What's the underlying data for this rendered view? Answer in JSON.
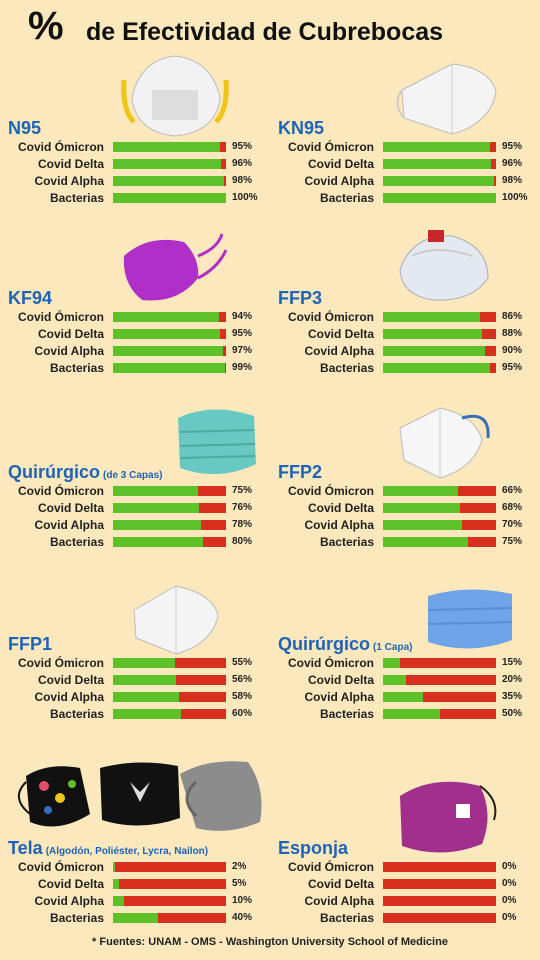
{
  "title": {
    "symbol": "%",
    "text": "de Efectividad de Cubrebocas"
  },
  "footer": "* Fuentes: UNAM - OMS - Washington University School of Medicine",
  "colors": {
    "effective": "#5fc12a",
    "not_effective": "#d92f1f",
    "background": "#fbe8bd",
    "mask_name": "#1e63b6"
  },
  "chart_data": {
    "type": "bar",
    "categories": [
      "Covid Ómicron",
      "Covid Delta",
      "Covid Alpha",
      "Bacterias"
    ],
    "ylim": [
      0,
      100
    ],
    "masks": [
      {
        "name": "N95",
        "sub": "",
        "values": [
          95,
          96,
          98,
          100
        ],
        "labels": [
          "95%",
          "96%",
          "98%",
          "100%"
        ]
      },
      {
        "name": "KN95",
        "sub": "",
        "values": [
          95,
          96,
          98,
          100
        ],
        "labels": [
          "95%",
          "96%",
          "98%",
          "100%"
        ]
      },
      {
        "name": "KF94",
        "sub": "",
        "values": [
          94,
          95,
          97,
          99
        ],
        "labels": [
          "94%",
          "95%",
          "97%",
          "99%"
        ]
      },
      {
        "name": "FFP3",
        "sub": "",
        "values": [
          86,
          88,
          90,
          95
        ],
        "labels": [
          "86%",
          "88%",
          "90%",
          "95%"
        ]
      },
      {
        "name": "Quirúrgico",
        "sub": "(de 3 Capas)",
        "values": [
          75,
          76,
          78,
          80
        ],
        "labels": [
          "75%",
          "76%",
          "78%",
          "80%"
        ]
      },
      {
        "name": "FFP2",
        "sub": "",
        "values": [
          66,
          68,
          70,
          75
        ],
        "labels": [
          "66%",
          "68%",
          "70%",
          "75%"
        ]
      },
      {
        "name": "FFP1",
        "sub": "",
        "values": [
          55,
          56,
          58,
          60
        ],
        "labels": [
          "55%",
          "56%",
          "58%",
          "60%"
        ]
      },
      {
        "name": "Quirúrgico",
        "sub": "(1 Capa)",
        "values": [
          15,
          20,
          35,
          50
        ],
        "labels": [
          "15%",
          "20%",
          "35%",
          "50%"
        ]
      },
      {
        "name": "Tela",
        "sub": "(Algodón, Poliéster, Lycra, Nailon)",
        "values": [
          2,
          5,
          10,
          40
        ],
        "labels": [
          "2%",
          "5%",
          "10%",
          "40%"
        ]
      },
      {
        "name": "Esponja",
        "sub": "",
        "values": [
          0,
          0,
          0,
          0
        ],
        "labels": [
          "0%",
          "0%",
          "0%",
          "0%"
        ]
      }
    ]
  }
}
